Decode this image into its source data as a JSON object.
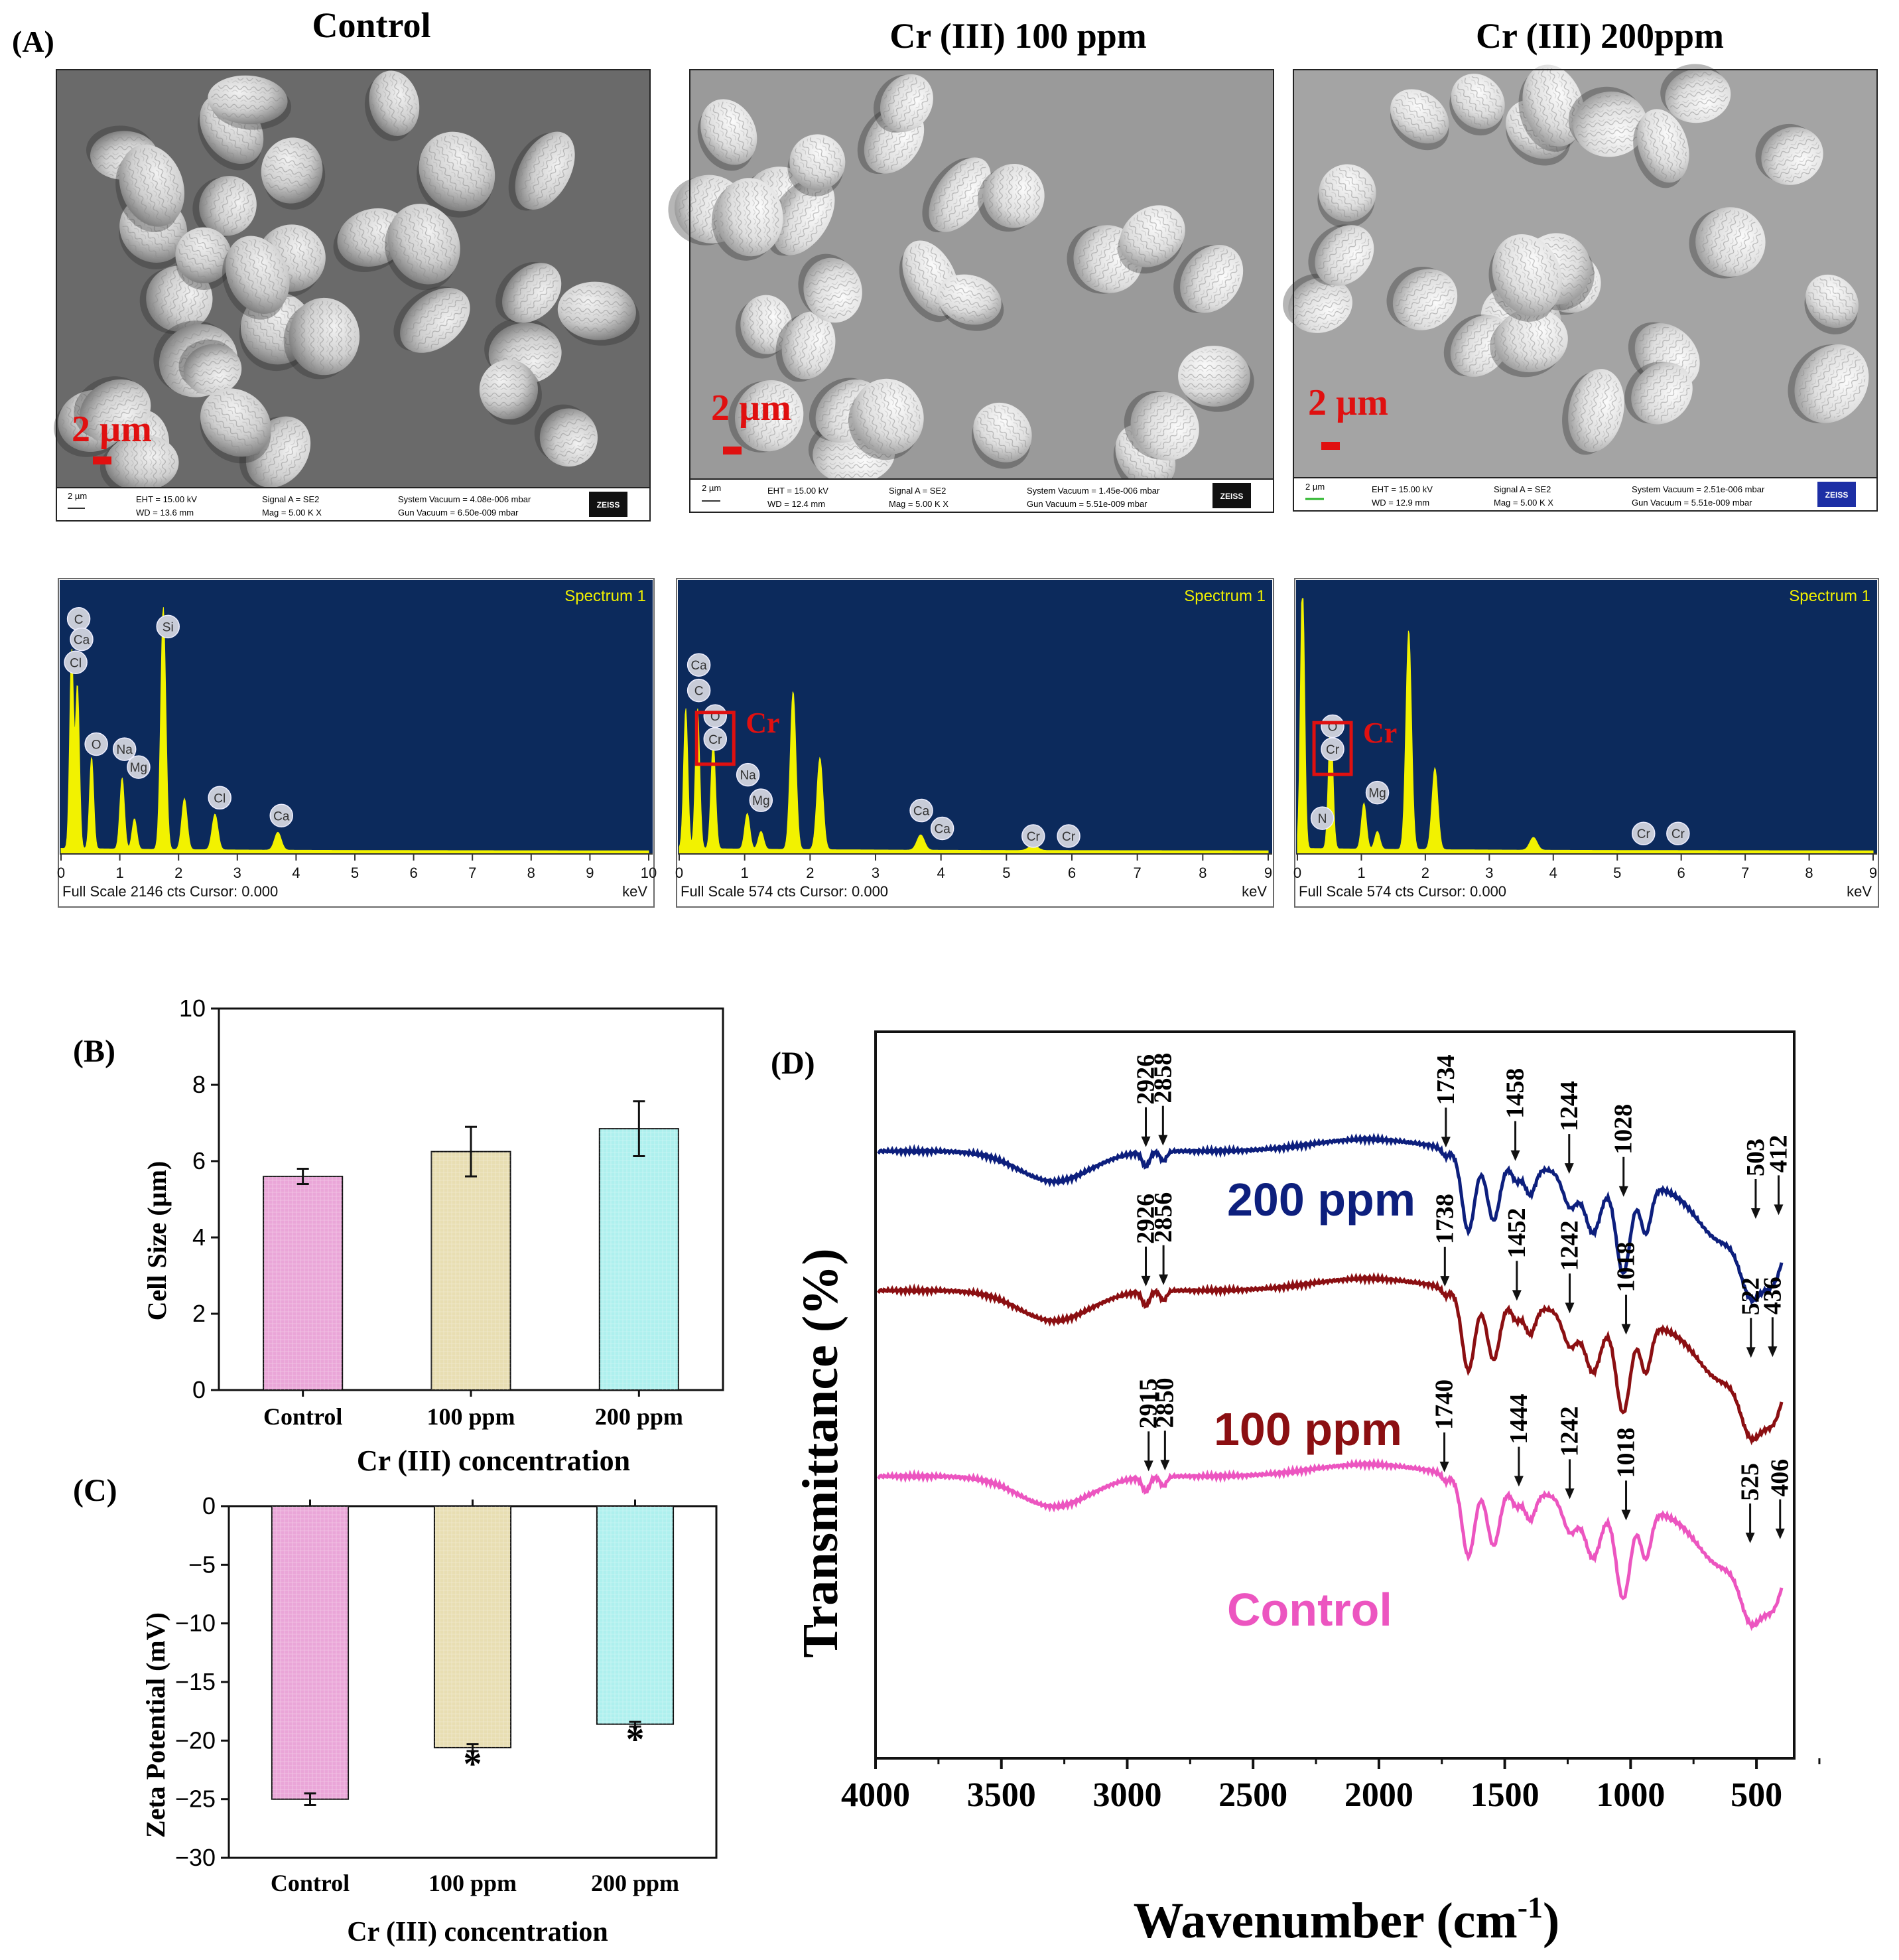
{
  "panel_labels": {
    "a": "(A)",
    "b": "(B)",
    "c": "(C)",
    "d": "(D)"
  },
  "sem_panels": [
    {
      "title": "Control",
      "scale_text": "2 µm",
      "info": {
        "scale": "2 µm",
        "eht": "EHT = 15.00 kV",
        "wd": "WD = 13.6 mm",
        "signal": "Signal A = SE2",
        "mag": "Mag =   5.00 K X",
        "vac": "System Vacuum = 4.08e-006 mbar",
        "gun": "Gun Vacuum = 6.50e-009 mbar",
        "logo": "ZEISS"
      }
    },
    {
      "title": "Cr (III) 100 ppm",
      "scale_text": "2 µm",
      "info": {
        "scale": "2 µm",
        "eht": "EHT = 15.00 kV",
        "wd": "WD = 12.4 mm",
        "signal": "Signal A = SE2",
        "mag": "Mag =   5.00 K X",
        "vac": "System Vacuum = 1.45e-006 mbar",
        "gun": "Gun Vacuum = 5.51e-009 mbar",
        "logo": "ZEISS"
      }
    },
    {
      "title": "Cr (III) 200ppm",
      "scale_text": "2 µm",
      "info": {
        "scale": "2 µm",
        "eht": "EHT = 15.00 kV",
        "wd": "WD = 12.9 mm",
        "signal": "Signal A = SE2",
        "mag": "Mag =   5.00 K X",
        "vac": "System Vacuum = 2.51e-006 mbar",
        "gun": "Gun Vacuum = 5.51e-009 mbar",
        "logo": "ZEISS"
      }
    }
  ],
  "eds_panels": [
    {
      "spectrum": "Spectrum 1",
      "footer": "Full Scale 2146 cts Cursor: 0.000",
      "unit": "keV",
      "xmax": 10,
      "ticks": [
        "0",
        "1",
        "2",
        "3",
        "4",
        "5",
        "6",
        "7",
        "8",
        "9",
        "10"
      ],
      "peaks": [
        [
          0.18,
          0.78
        ],
        [
          0.28,
          0.64
        ],
        [
          0.52,
          0.36
        ],
        [
          1.04,
          0.28
        ],
        [
          1.25,
          0.12
        ],
        [
          1.74,
          0.95
        ],
        [
          2.1,
          0.2
        ],
        [
          2.62,
          0.14
        ],
        [
          3.69,
          0.07
        ]
      ],
      "elements": [
        {
          "s": "C",
          "kev": 0.3,
          "h": 0.92
        },
        {
          "s": "Ca",
          "kev": 0.35,
          "h": 0.84
        },
        {
          "s": "Cl",
          "kev": 0.25,
          "h": 0.75
        },
        {
          "s": "Si",
          "kev": 1.82,
          "h": 0.89
        },
        {
          "s": "O",
          "kev": 0.6,
          "h": 0.43
        },
        {
          "s": "Na",
          "kev": 1.08,
          "h": 0.41
        },
        {
          "s": "Mg",
          "kev": 1.32,
          "h": 0.34
        },
        {
          "s": "Cl",
          "kev": 2.7,
          "h": 0.22
        },
        {
          "s": "Ca",
          "kev": 3.75,
          "h": 0.15
        }
      ],
      "marker": null
    },
    {
      "spectrum": "Spectrum 1",
      "footer": "Full Scale 574 cts Cursor: 0.000",
      "unit": "keV",
      "xmax": 9,
      "ticks": [
        "0",
        "1",
        "2",
        "3",
        "4",
        "5",
        "6",
        "7",
        "8",
        "9"
      ],
      "peaks": [
        [
          0.1,
          0.55
        ],
        [
          0.28,
          0.55
        ],
        [
          0.52,
          0.42
        ],
        [
          1.04,
          0.14
        ],
        [
          1.25,
          0.07
        ],
        [
          1.74,
          0.62
        ],
        [
          2.15,
          0.36
        ],
        [
          3.69,
          0.06
        ],
        [
          5.41,
          0.02
        ]
      ],
      "elements": [
        {
          "s": "Ca",
          "kev": 0.3,
          "h": 0.74
        },
        {
          "s": "C",
          "kev": 0.3,
          "h": 0.64
        },
        {
          "s": "O",
          "kev": 0.55,
          "h": 0.54
        },
        {
          "s": "Cr",
          "kev": 0.55,
          "h": 0.45
        },
        {
          "s": "Na",
          "kev": 1.05,
          "h": 0.31
        },
        {
          "s": "Mg",
          "kev": 1.25,
          "h": 0.21
        },
        {
          "s": "Ca",
          "kev": 3.7,
          "h": 0.17
        },
        {
          "s": "Ca",
          "kev": 4.02,
          "h": 0.1
        },
        {
          "s": "Cr",
          "kev": 5.41,
          "h": 0.07
        },
        {
          "s": "Cr",
          "kev": 5.95,
          "h": 0.07
        }
      ],
      "marker": {
        "label": "Cr",
        "kev": 0.55,
        "h": 0.45
      }
    },
    {
      "spectrum": "Spectrum 1",
      "footer": "Full Scale 574 cts Cursor: 0.000",
      "unit": "keV",
      "xmax": 9,
      "ticks": [
        "0",
        "1",
        "2",
        "3",
        "4",
        "5",
        "6",
        "7",
        "8",
        "9"
      ],
      "peaks": [
        [
          0.08,
          1.08
        ],
        [
          0.52,
          0.52
        ],
        [
          1.04,
          0.18
        ],
        [
          1.25,
          0.07
        ],
        [
          1.74,
          0.86
        ],
        [
          2.15,
          0.32
        ],
        [
          3.69,
          0.05
        ]
      ],
      "elements": [
        {
          "s": "O",
          "kev": 0.55,
          "h": 0.5
        },
        {
          "s": "Cr",
          "kev": 0.55,
          "h": 0.41
        },
        {
          "s": "Mg",
          "kev": 1.25,
          "h": 0.24
        },
        {
          "s": "N",
          "kev": 0.39,
          "h": 0.14
        },
        {
          "s": "Cr",
          "kev": 5.41,
          "h": 0.08
        },
        {
          "s": "Cr",
          "kev": 5.95,
          "h": 0.08
        }
      ],
      "marker": {
        "label": "Cr",
        "kev": 0.55,
        "h": 0.41
      }
    }
  ],
  "chart_data": [
    {
      "id": "B",
      "type": "bar",
      "categories": [
        "Control",
        "100 ppm",
        "200 ppm"
      ],
      "values": [
        5.6,
        6.25,
        6.85
      ],
      "errors": [
        0.2,
        0.65,
        0.72
      ],
      "colors": [
        "#eaa6d8",
        "#e8deb2",
        "#aef0ee"
      ],
      "ylabel": "Cell Size (µm)",
      "xlabel": "Cr (III) concentration",
      "ylim": [
        0,
        10
      ],
      "yticks": [
        "0",
        "2",
        "4",
        "6",
        "8",
        "10"
      ]
    },
    {
      "id": "C",
      "type": "bar",
      "categories": [
        "Control",
        "100 ppm",
        "200 ppm"
      ],
      "values": [
        -25.0,
        -20.6,
        -18.6
      ],
      "errors": [
        0.5,
        0.3,
        0.2
      ],
      "colors": [
        "#eaa6d8",
        "#e8deb2",
        "#aef0ee"
      ],
      "ylabel": "Zeta Potential (mV)",
      "xlabel": "Cr (III) concentration",
      "ylim": [
        -30,
        0
      ],
      "yticks": [
        "0",
        "−5",
        "−10",
        "−15",
        "−20",
        "−25",
        "−30"
      ],
      "significance": [
        "",
        "*",
        "*"
      ]
    },
    {
      "id": "D",
      "type": "line",
      "xlabel": "Wavenumber (cm",
      "xlabel_sup": "-1",
      "xlabel_end": ")",
      "ylabel": "Transmittance (%)",
      "xlim": [
        4000,
        350
      ],
      "xticks": [
        "4000",
        "3500",
        "3000",
        "2500",
        "2000",
        "1500",
        "1000",
        "500"
      ],
      "series": [
        {
          "name": "200 ppm",
          "color": "#0d1f7d",
          "offset": 0,
          "annotations": [
            "2926",
            "2858",
            "1734",
            "1458",
            "1244",
            "1028",
            "503",
            "412"
          ]
        },
        {
          "name": "100 ppm",
          "color": "#8b0f12",
          "offset": 1,
          "annotations": [
            "2926",
            "2856",
            "1738",
            "1452",
            "1242",
            "1018",
            "522",
            "436"
          ]
        },
        {
          "name": "Control",
          "color": "#ec55c0",
          "offset": 2,
          "annotations": [
            "2915",
            "2850",
            "1740",
            "1444",
            "1242",
            "1018",
            "525",
            "406"
          ]
        }
      ]
    }
  ]
}
